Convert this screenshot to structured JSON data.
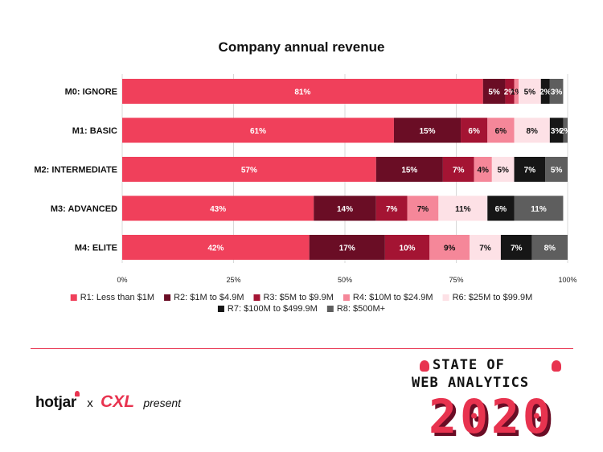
{
  "chart_data": {
    "type": "bar",
    "orientation": "horizontal",
    "stacked": true,
    "title": "Company annual revenue",
    "categories": [
      "M0: IGNORE",
      "M1: BASIC",
      "M2: INTERMEDIATE",
      "M3: ADVANCED",
      "M4: ELITE"
    ],
    "xlim": [
      0,
      100
    ],
    "x_ticks": [
      "0%",
      "25%",
      "50%",
      "75%",
      "100%"
    ],
    "grid": true,
    "legend_position": "bottom",
    "series": [
      {
        "name": "R1: Less than $1M",
        "color": "#f0405b",
        "label_color": "#ffffff",
        "values": [
          81,
          61,
          57,
          43,
          42
        ],
        "labels": [
          "81%",
          "61%",
          "57%",
          "43%",
          "42%"
        ]
      },
      {
        "name": "R2: $1M to $4.9M",
        "color": "#6a0d25",
        "label_color": "#ffffff",
        "values": [
          5,
          15,
          15,
          14,
          17
        ],
        "labels": [
          "5%",
          "15%",
          "15%",
          "14%",
          "17%"
        ]
      },
      {
        "name": "R3: $5M to $9.9M",
        "color": "#a41433",
        "label_color": "#ffffff",
        "values": [
          2,
          6,
          7,
          7,
          10
        ],
        "labels": [
          "2%",
          "6%",
          "7%",
          "7%",
          "10%"
        ]
      },
      {
        "name": "R4: $10M to $24.9M",
        "color": "#f58799",
        "label_color": "#111111",
        "values": [
          1,
          6,
          4,
          7,
          9
        ],
        "labels": [
          "1%",
          "6%",
          "4%",
          "7%",
          "9%"
        ]
      },
      {
        "name": "R6: $25M to $99.9M",
        "color": "#fde1e6",
        "label_color": "#111111",
        "values": [
          5,
          8,
          5,
          11,
          7
        ],
        "labels": [
          "5%",
          "8%",
          "5%",
          "11%",
          "7%"
        ]
      },
      {
        "name": "R7: $100M to $499.9M",
        "color": "#161616",
        "label_color": "#ffffff",
        "values": [
          2,
          3,
          7,
          6,
          7
        ],
        "labels": [
          "2%",
          "3%",
          "7%",
          "6%",
          "7%"
        ]
      },
      {
        "name": "R8: $500M+",
        "color": "#5e5e5e",
        "label_color": "#ffffff",
        "values": [
          3,
          2,
          5,
          11,
          8
        ],
        "labels": [
          "3%",
          "2%",
          "5%",
          "11%",
          "8%"
        ]
      }
    ]
  },
  "footer": {
    "brand_hotjar": "hotjar",
    "brand_x": "x",
    "brand_cxl": "CXL",
    "brand_present": "present",
    "logo_line1": "STATE OF",
    "logo_line2": "WEB ANALYTICS",
    "logo_year": "2020",
    "accent_color": "#e8334f"
  }
}
